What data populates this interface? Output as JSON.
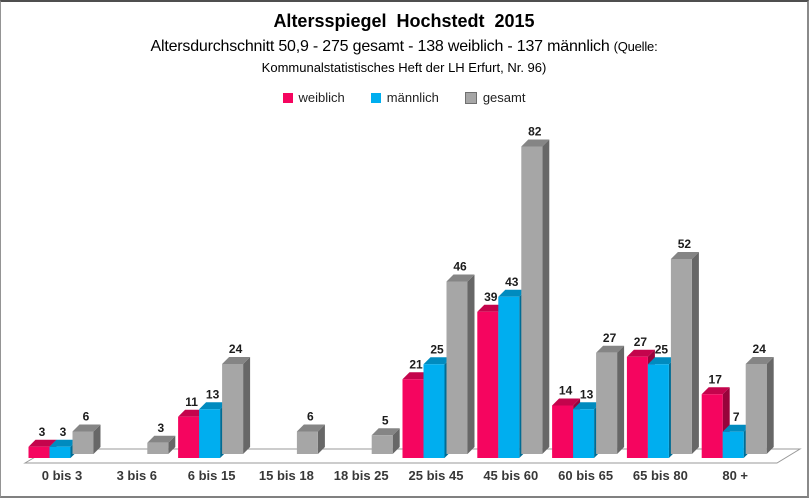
{
  "header": {
    "title": "Altersspiegel Hochstedt 2015",
    "subtitle_main": "Altersdurchschnitt 50,9 - 275 gesamt - 138 weiblich - 137 männlich",
    "source_prefix": "(Quelle:",
    "source_line2": "Kommunalstatistisches Heft der LH Erfurt, Nr. 96)"
  },
  "chart_data": {
    "type": "bar",
    "style": "3d-clustered-column",
    "title": "Altersspiegel Hochstedt 2015",
    "categories": [
      "0 bis 3",
      "3 bis 6",
      "6 bis 15",
      "15 bis 18",
      "18 bis 25",
      "25 bis 45",
      "45 bis 60",
      "60 bis 65",
      "65 bis 80",
      "80 +"
    ],
    "series": [
      {
        "name": "weiblich",
        "key": "weiblich",
        "color": "#F5055F",
        "values": [
          3,
          null,
          11,
          null,
          null,
          21,
          39,
          14,
          27,
          17
        ]
      },
      {
        "name": "männlich",
        "key": "maennlich",
        "color": "#00AEEF",
        "values": [
          3,
          null,
          13,
          null,
          null,
          25,
          43,
          13,
          25,
          7
        ]
      },
      {
        "name": "gesamt",
        "key": "gesamt",
        "color": "#A6A6A6",
        "values": [
          6,
          3,
          24,
          6,
          5,
          46,
          82,
          27,
          52,
          24
        ]
      }
    ],
    "value_labels": true,
    "gridlines": false,
    "y_axis_visible": false,
    "legend_position": "top",
    "ylim": [
      0,
      82
    ],
    "floor_color": "#ffffff",
    "floor_edge_color": "#999999"
  }
}
